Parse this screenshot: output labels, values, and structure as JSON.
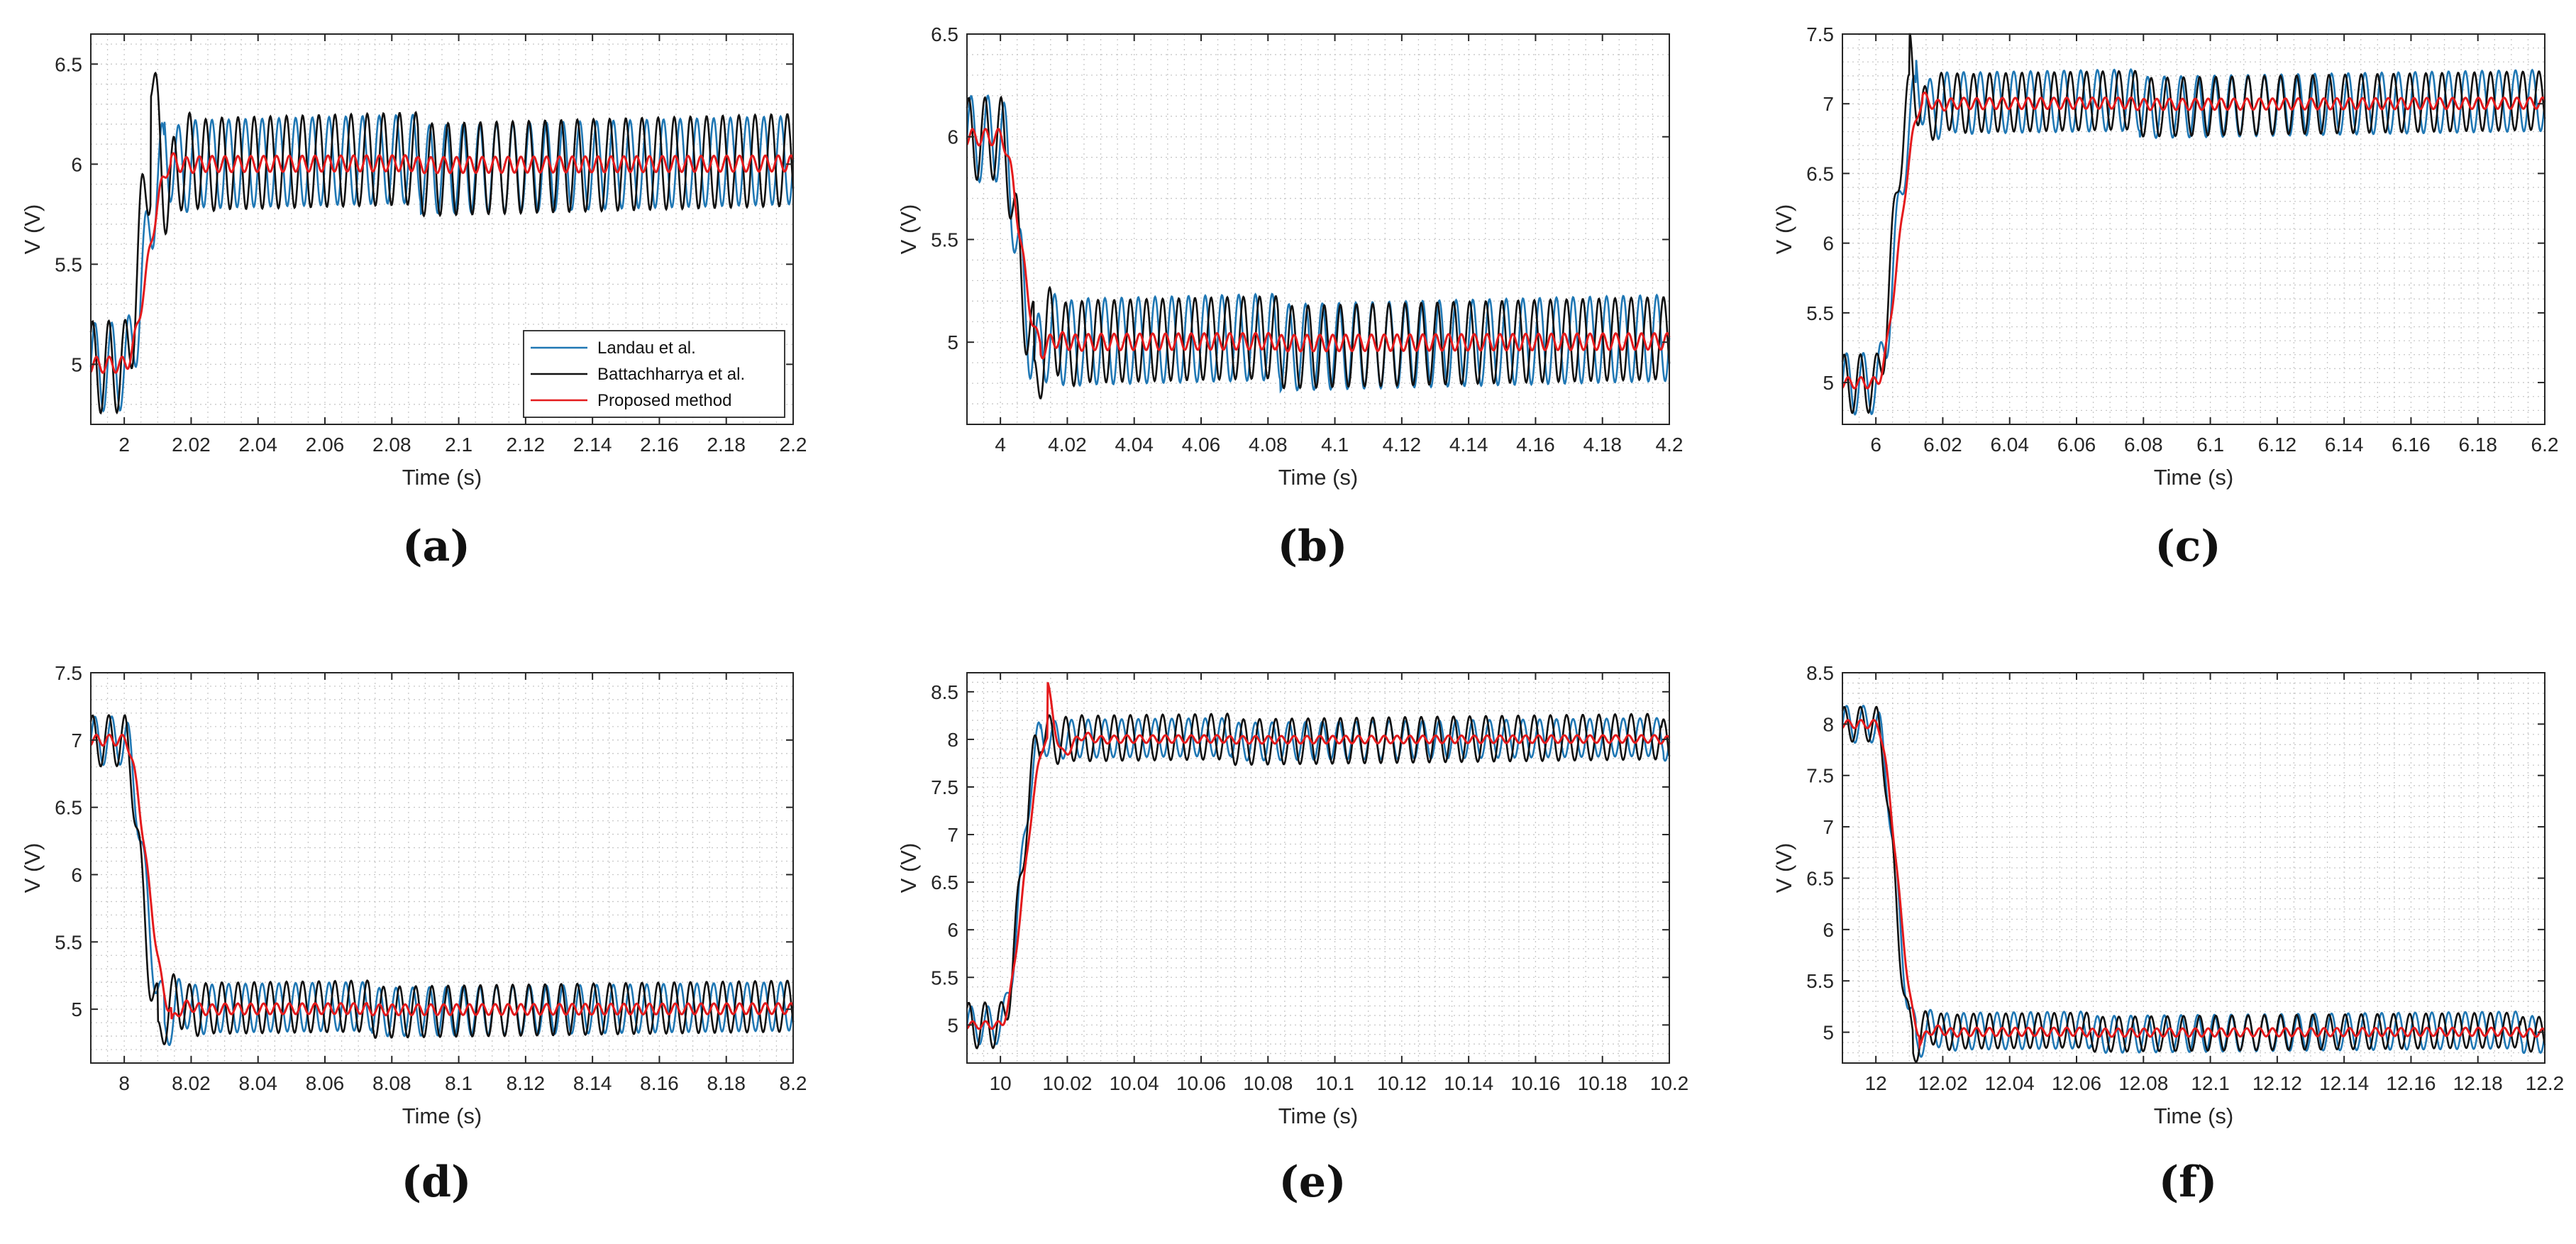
{
  "figure": {
    "legend": {
      "entries": [
        "Landau et al.",
        "Battachharrya et al.",
        "Proposed method"
      ],
      "placement": "bottom-right of panel (a)"
    }
  },
  "colors": {
    "landau": "#1f77b4",
    "battacharrya": "#111111",
    "proposed": "#e41a1c",
    "grid": "#c8c8c8",
    "axes": "#262626"
  },
  "chart_data": [
    {
      "panel": "(a)",
      "type": "line",
      "xlabel": "Time (s)",
      "ylabel": "V (V)",
      "xlim": [
        1.99,
        2.2
      ],
      "ylim": [
        4.7,
        6.65
      ],
      "xticks": [
        2,
        2.02,
        2.04,
        2.06,
        2.08,
        2.1,
        2.12,
        2.14,
        2.16,
        2.18,
        2.2
      ],
      "xtick_labels": [
        "2",
        "2.02",
        "2.04",
        "2.06",
        "2.08",
        "2.1",
        "2.12",
        "2.14",
        "2.16",
        "2.18",
        "2.2"
      ],
      "yticks": [
        5,
        5.5,
        6,
        6.5
      ],
      "ytick_labels": [
        "5",
        "5.5",
        "6",
        "6.5"
      ],
      "grid": true,
      "legend": true,
      "step": {
        "t_step": 2.0,
        "v0": 5.0,
        "v1": 6.0
      },
      "series": [
        {
          "name": "Landau et al.",
          "ripple_amplitude": 0.22,
          "rise_time": 0.012,
          "overshoot": 0.1
        },
        {
          "name": "Battachharrya et al.",
          "ripple_amplitude": 0.23,
          "rise_time": 0.008,
          "overshoot": 0.52
        },
        {
          "name": "Proposed method",
          "ripple_amplitude": 0.04,
          "rise_time": 0.014,
          "overshoot": 0.02
        }
      ]
    },
    {
      "panel": "(b)",
      "type": "line",
      "xlabel": "Time (s)",
      "ylabel": "V (V)",
      "xlim": [
        3.99,
        4.2
      ],
      "ylim": [
        4.6,
        6.5
      ],
      "xticks": [
        4,
        4.02,
        4.04,
        4.06,
        4.08,
        4.1,
        4.12,
        4.14,
        4.16,
        4.18,
        4.2
      ],
      "xtick_labels": [
        "4",
        "4.02",
        "4.04",
        "4.06",
        "4.08",
        "4.1",
        "4.12",
        "4.14",
        "4.16",
        "4.18",
        "4.2"
      ],
      "yticks": [
        5,
        5.5,
        6,
        6.5
      ],
      "ytick_labels": [
        "5",
        "5.5",
        "6",
        "6.5"
      ],
      "grid": true,
      "legend": false,
      "step": {
        "t_step": 4.0,
        "v0": 6.0,
        "v1": 5.0
      },
      "series": [
        {
          "name": "Landau et al.",
          "ripple_amplitude": 0.21,
          "rise_time": 0.01,
          "overshoot": 0.12
        },
        {
          "name": "Battachharrya et al.",
          "ripple_amplitude": 0.2,
          "rise_time": 0.01,
          "overshoot": 0.28
        },
        {
          "name": "Proposed method",
          "ripple_amplitude": 0.04,
          "rise_time": 0.012,
          "overshoot": 0.05
        }
      ]
    },
    {
      "panel": "(c)",
      "type": "line",
      "xlabel": "Time (s)",
      "ylabel": "V (V)",
      "xlim": [
        5.99,
        6.2
      ],
      "ylim": [
        4.7,
        7.5
      ],
      "xticks": [
        6,
        6.02,
        6.04,
        6.06,
        6.08,
        6.1,
        6.12,
        6.14,
        6.16,
        6.18,
        6.2
      ],
      "xtick_labels": [
        "6",
        "6.02",
        "6.04",
        "6.06",
        "6.08",
        "6.1",
        "6.12",
        "6.14",
        "6.16",
        "6.18",
        "6.2"
      ],
      "yticks": [
        5,
        5.5,
        6,
        6.5,
        7,
        7.5
      ],
      "ytick_labels": [
        "5",
        "5.5",
        "6",
        "6.5",
        "7",
        "7.5"
      ],
      "grid": true,
      "legend": false,
      "step": {
        "t_step": 6.0,
        "v0": 5.0,
        "v1": 7.0
      },
      "series": [
        {
          "name": "Landau et al.",
          "ripple_amplitude": 0.22,
          "rise_time": 0.012,
          "overshoot": 0.2
        },
        {
          "name": "Battachharrya et al.",
          "ripple_amplitude": 0.21,
          "rise_time": 0.01,
          "overshoot": 0.35
        },
        {
          "name": "Proposed method",
          "ripple_amplitude": 0.04,
          "rise_time": 0.014,
          "overshoot": 0.05
        }
      ]
    },
    {
      "panel": "(d)",
      "type": "line",
      "xlabel": "Time (s)",
      "ylabel": "V (V)",
      "xlim": [
        7.99,
        8.2
      ],
      "ylim": [
        4.6,
        7.5
      ],
      "xticks": [
        8,
        8.02,
        8.04,
        8.06,
        8.08,
        8.1,
        8.12,
        8.14,
        8.16,
        8.18,
        8.2
      ],
      "xtick_labels": [
        "8",
        "8.02",
        "8.04",
        "8.06",
        "8.08",
        "8.1",
        "8.12",
        "8.14",
        "8.16",
        "8.18",
        "8.2"
      ],
      "yticks": [
        5,
        5.5,
        6,
        6.5,
        7,
        7.5
      ],
      "ytick_labels": [
        "5",
        "5.5",
        "6",
        "6.5",
        "7",
        "7.5"
      ],
      "grid": true,
      "legend": false,
      "step": {
        "t_step": 8.0,
        "v0": 7.0,
        "v1": 5.0
      },
      "series": [
        {
          "name": "Landau et al.",
          "ripple_amplitude": 0.18,
          "rise_time": 0.012,
          "overshoot": 0.2
        },
        {
          "name": "Battachharrya et al.",
          "ripple_amplitude": 0.19,
          "rise_time": 0.01,
          "overshoot": 0.28
        },
        {
          "name": "Proposed method",
          "ripple_amplitude": 0.04,
          "rise_time": 0.014,
          "overshoot": 0.1
        }
      ]
    },
    {
      "panel": "(e)",
      "type": "line",
      "xlabel": "Time (s)",
      "ylabel": "V (V)",
      "xlim": [
        9.99,
        10.2
      ],
      "ylim": [
        4.6,
        8.7
      ],
      "xticks": [
        10,
        10.02,
        10.04,
        10.06,
        10.08,
        10.1,
        10.12,
        10.14,
        10.16,
        10.18,
        10.2
      ],
      "xtick_labels": [
        "10",
        "10.02",
        "10.04",
        "10.06",
        "10.08",
        "10.1",
        "10.12",
        "10.14",
        "10.16",
        "10.18",
        "10.2"
      ],
      "yticks": [
        5,
        5.5,
        6,
        6.5,
        7,
        7.5,
        8,
        8.5
      ],
      "ytick_labels": [
        "5",
        "5.5",
        "6",
        "6.5",
        "7",
        "7.5",
        "8",
        "8.5"
      ],
      "grid": true,
      "legend": false,
      "step": {
        "t_step": 10.0,
        "v0": 5.0,
        "v1": 8.0
      },
      "series": [
        {
          "name": "Landau et al.",
          "ripple_amplitude": 0.2,
          "rise_time": 0.012,
          "overshoot": 0.05
        },
        {
          "name": "Battachharrya et al.",
          "ripple_amplitude": 0.24,
          "rise_time": 0.012,
          "overshoot": 0.1
        },
        {
          "name": "Proposed method",
          "ripple_amplitude": 0.04,
          "rise_time": 0.014,
          "overshoot": 0.6
        }
      ]
    },
    {
      "panel": "(f)",
      "type": "line",
      "xlabel": "Time (s)",
      "ylabel": "V (V)",
      "xlim": [
        11.99,
        12.2
      ],
      "ylim": [
        4.7,
        8.5
      ],
      "xticks": [
        12,
        12.02,
        12.04,
        12.06,
        12.08,
        12.1,
        12.12,
        12.14,
        12.16,
        12.18,
        12.2
      ],
      "xtick_labels": [
        "12",
        "12.02",
        "12.04",
        "12.06",
        "12.08",
        "12.1",
        "12.12",
        "12.14",
        "12.16",
        "12.18",
        "12.2"
      ],
      "yticks": [
        5,
        5.5,
        6,
        6.5,
        7,
        7.5,
        8,
        8.5
      ],
      "ytick_labels": [
        "5",
        "5.5",
        "6",
        "6.5",
        "7",
        "7.5",
        "8",
        "8.5"
      ],
      "grid": true,
      "legend": false,
      "step": {
        "t_step": 12.0,
        "v0": 8.0,
        "v1": 5.0
      },
      "series": [
        {
          "name": "Landau et al.",
          "ripple_amplitude": 0.18,
          "rise_time": 0.012,
          "overshoot": 0.15
        },
        {
          "name": "Battachharrya et al.",
          "ripple_amplitude": 0.17,
          "rise_time": 0.011,
          "overshoot": 0.2
        },
        {
          "name": "Proposed method",
          "ripple_amplitude": 0.04,
          "rise_time": 0.013,
          "overshoot": 0.1
        }
      ]
    }
  ]
}
